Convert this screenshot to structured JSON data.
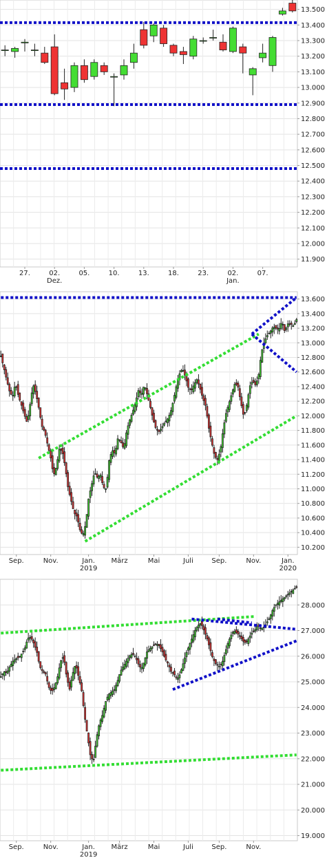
{
  "chart_data": [
    {
      "type": "candlestick",
      "ylim": [
        11850,
        13560
      ],
      "yticks": [
        11900,
        12000,
        12100,
        12200,
        12300,
        12400,
        12500,
        12600,
        12700,
        12800,
        12900,
        13000,
        13100,
        13200,
        13300,
        13400,
        13500
      ],
      "ytick_labels": [
        "11.900",
        "12.000",
        "12.100",
        "12.200",
        "12.300",
        "12.400",
        "12.500",
        "12.600",
        "12.700",
        "12.800",
        "12.900",
        "13.000",
        "13.100",
        "13.200",
        "13.300",
        "13.400",
        "13.500"
      ],
      "xtick_labels": [
        "27.",
        "02.",
        "05.",
        "10.",
        "13.",
        "18.",
        "23.",
        "02.",
        "07."
      ],
      "xtick_sublabels": [
        "",
        "Dez.",
        "",
        "",
        "",
        "",
        "",
        "Jan.",
        ""
      ],
      "xtick_index": [
        2,
        5,
        8,
        11,
        14,
        17,
        20,
        23,
        26
      ],
      "horizontal_lines": [
        {
          "value": 13415,
          "color": "#1010c8"
        },
        {
          "value": 12890,
          "color": "#1010c8"
        },
        {
          "value": 12480,
          "color": "#1010c8"
        }
      ],
      "candles": [
        {
          "o": 13240,
          "h": 13270,
          "l": 13200,
          "c": 13240
        },
        {
          "o": 13230,
          "h": 13260,
          "l": 13190,
          "c": 13250
        },
        {
          "o": 13285,
          "h": 13310,
          "l": 13230,
          "c": 13290
        },
        {
          "o": 13240,
          "h": 13280,
          "l": 13200,
          "c": 13240
        },
        {
          "o": 13220,
          "h": 13260,
          "l": 13150,
          "c": 13160
        },
        {
          "o": 13260,
          "h": 13340,
          "l": 12950,
          "c": 12960
        },
        {
          "o": 13030,
          "h": 13120,
          "l": 12920,
          "c": 12990
        },
        {
          "o": 13000,
          "h": 13160,
          "l": 12970,
          "c": 13140
        },
        {
          "o": 13140,
          "h": 13180,
          "l": 13030,
          "c": 13050
        },
        {
          "o": 13070,
          "h": 13180,
          "l": 13050,
          "c": 13160
        },
        {
          "o": 13140,
          "h": 13160,
          "l": 13080,
          "c": 13100
        },
        {
          "o": 13070,
          "h": 13090,
          "l": 12880,
          "c": 13070
        },
        {
          "o": 13080,
          "h": 13180,
          "l": 13050,
          "c": 13140
        },
        {
          "o": 13160,
          "h": 13280,
          "l": 13120,
          "c": 13220
        },
        {
          "o": 13370,
          "h": 13420,
          "l": 13250,
          "c": 13270
        },
        {
          "o": 13330,
          "h": 13410,
          "l": 13290,
          "c": 13400
        },
        {
          "o": 13380,
          "h": 13400,
          "l": 13260,
          "c": 13280
        },
        {
          "o": 13270,
          "h": 13280,
          "l": 13200,
          "c": 13220
        },
        {
          "o": 13230,
          "h": 13260,
          "l": 13150,
          "c": 13210
        },
        {
          "o": 13200,
          "h": 13330,
          "l": 13180,
          "c": 13310
        },
        {
          "o": 13300,
          "h": 13320,
          "l": 13280,
          "c": 13300
        },
        {
          "o": 13320,
          "h": 13370,
          "l": 13300,
          "c": 13320
        },
        {
          "o": 13290,
          "h": 13340,
          "l": 13230,
          "c": 13240
        },
        {
          "o": 13230,
          "h": 13390,
          "l": 13220,
          "c": 13380
        },
        {
          "o": 13260,
          "h": 13280,
          "l": 13090,
          "c": 13220
        },
        {
          "o": 13080,
          "h": 13130,
          "l": 12950,
          "c": 13120
        },
        {
          "o": 13190,
          "h": 13280,
          "l": 13160,
          "c": 13220
        },
        {
          "o": 13140,
          "h": 13330,
          "l": 13100,
          "c": 13320
        },
        {
          "o": 13470,
          "h": 13510,
          "l": 13460,
          "c": 13490
        },
        {
          "o": 13540,
          "h": 13560,
          "l": 13480,
          "c": 13490
        }
      ]
    },
    {
      "type": "candlestick",
      "ylim": [
        10100,
        13700
      ],
      "yticks": [
        10200,
        10400,
        10600,
        10800,
        11000,
        11200,
        11400,
        11600,
        11800,
        12000,
        12200,
        12400,
        12600,
        12800,
        13000,
        13200,
        13400,
        13600
      ],
      "ytick_labels": [
        "10.200",
        "10.400",
        "10.600",
        "10.800",
        "11.000",
        "11.200",
        "11.400",
        "11.600",
        "11.800",
        "12.000",
        "12.200",
        "12.400",
        "12.600",
        "12.800",
        "13.000",
        "13.200",
        "13.400",
        "13.600"
      ],
      "xtick_labels": [
        "Sep.",
        "Nov.",
        "Jan.",
        "März",
        "Mai",
        "Juli",
        "Sep.",
        "Nov.",
        "Jan."
      ],
      "xtick_sublabels": [
        "",
        "",
        "2019",
        "",
        "",
        "",
        "",
        "",
        "2020"
      ],
      "xtick_index": [
        9,
        29,
        51,
        69,
        89,
        109,
        127,
        147,
        167
      ],
      "trend_lines": [
        {
          "color": "#33dd33",
          "from": [
            22,
            11420
          ],
          "to": [
            150,
            13120
          ]
        },
        {
          "color": "#33dd33",
          "from": [
            49,
            10280
          ],
          "to": [
            172,
            12000
          ]
        },
        {
          "color": "#1010c8",
          "from": [
            0,
            13620
          ],
          "to": [
            172,
            13620
          ]
        },
        {
          "color": "#1010c8",
          "from": [
            146,
            13120
          ],
          "to": [
            172,
            13620
          ]
        },
        {
          "color": "#1010c8",
          "from": [
            146,
            13120
          ],
          "to": [
            172,
            12600
          ]
        }
      ],
      "closes": [
        12820,
        12660,
        12490,
        12330,
        12260,
        12450,
        12270,
        12150,
        12020,
        11900,
        12160,
        12430,
        12300,
        12100,
        11860,
        11780,
        11600,
        11430,
        11180,
        11310,
        11550,
        11510,
        11300,
        11000,
        10840,
        10670,
        10620,
        10440,
        10360,
        10520,
        10880,
        11050,
        11230,
        11150,
        11200,
        11020,
        11000,
        11390,
        11530,
        11480,
        11700,
        11640,
        11550,
        11800,
        11940,
        12050,
        12180,
        12350,
        12290,
        12430,
        12290,
        12130,
        11950,
        11820,
        11780,
        11840,
        11910,
        11960,
        12050,
        12220,
        12420,
        12570,
        12650,
        12540,
        12390,
        12340,
        12430,
        12500,
        12380,
        12240,
        12130,
        11840,
        11640,
        11450,
        11400,
        11530,
        11830,
        12050,
        12180,
        12320,
        12450,
        12400,
        12180,
        11980,
        12150,
        12400,
        12480,
        12420,
        12540,
        12870,
        13020,
        13100,
        13150,
        13220,
        13200,
        13180,
        13300,
        13150,
        13260,
        13260,
        13230,
        13320
      ]
    },
    {
      "type": "candlestick",
      "ylim": [
        18800,
        29000
      ],
      "yticks": [
        19000,
        20000,
        21000,
        22000,
        23000,
        24000,
        25000,
        26000,
        27000,
        28000
      ],
      "ytick_labels": [
        "19.000",
        "20.000",
        "21.000",
        "22.000",
        "23.000",
        "24.000",
        "25.000",
        "26.000",
        "27.000",
        "28.000"
      ],
      "xtick_labels": [
        "Sep.",
        "Nov.",
        "Jan.",
        "März",
        "Mai",
        "Juli",
        "Sep.",
        "Nov."
      ],
      "xtick_sublabels": [
        "",
        "",
        "2019",
        "",
        "",
        "",
        "",
        ""
      ],
      "xtick_index": [
        9,
        29,
        51,
        69,
        89,
        109,
        127,
        147
      ],
      "trend_lines": [
        {
          "color": "#33dd33",
          "from": [
            0,
            26900
          ],
          "to": [
            148,
            27550
          ]
        },
        {
          "color": "#33dd33",
          "from": [
            0,
            21550
          ],
          "to": [
            172,
            22150
          ]
        },
        {
          "color": "#1010c8",
          "from": [
            100,
            24700
          ],
          "to": [
            172,
            26600
          ]
        },
        {
          "color": "#1010c8",
          "from": [
            111,
            27450
          ],
          "to": [
            172,
            27050
          ]
        },
        {
          "color": "#1010c8",
          "from": [
            126,
            27450
          ],
          "to": [
            146,
            27300
          ]
        }
      ],
      "closes": [
        25200,
        25400,
        25350,
        25600,
        25800,
        25900,
        25950,
        26100,
        26300,
        26700,
        26750,
        26500,
        26200,
        25600,
        25400,
        25300,
        24800,
        24600,
        24800,
        25200,
        25800,
        26000,
        25200,
        24700,
        25300,
        25700,
        25200,
        24700,
        23700,
        22900,
        22100,
        21900,
        22800,
        23400,
        23700,
        24200,
        24500,
        24600,
        24700,
        25000,
        25400,
        25600,
        25800,
        26000,
        26100,
        26000,
        25700,
        25500,
        25800,
        26200,
        26300,
        26400,
        26500,
        26400,
        26200,
        25900,
        25700,
        25400,
        25300,
        25100,
        25300,
        25700,
        26100,
        26400,
        26700,
        27000,
        27200,
        27300,
        27000,
        26700,
        26300,
        25900,
        25700,
        25600,
        25700,
        26100,
        26500,
        26800,
        27000,
        26900,
        26800,
        26600,
        26500,
        26700,
        26900,
        27000,
        27200,
        27100,
        27100,
        27300,
        27500,
        27800,
        28000,
        28100,
        28200,
        28300,
        28400,
        28500,
        28600,
        28700
      ]
    }
  ]
}
